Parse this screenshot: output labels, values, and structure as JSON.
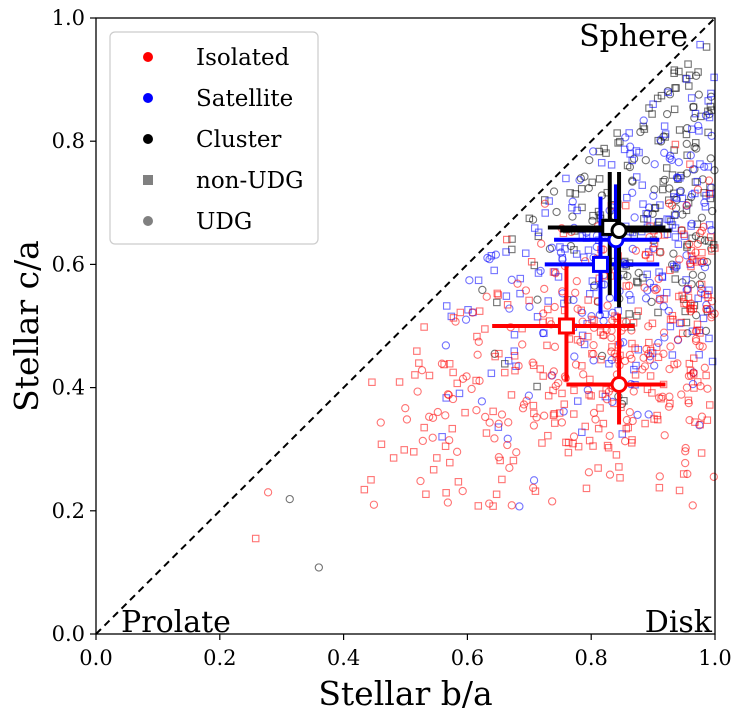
{
  "chart_data": {
    "type": "scatter",
    "title": "",
    "xlabel": "Stellar b/a",
    "ylabel": "Stellar c/a",
    "xlim": [
      0.0,
      1.0
    ],
    "ylim": [
      0.0,
      1.0
    ],
    "xticks": [
      "0.0",
      "0.2",
      "0.4",
      "0.6",
      "0.8",
      "1.0"
    ],
    "yticks": [
      "0.0",
      "0.2",
      "0.4",
      "0.6",
      "0.8",
      "1.0"
    ],
    "grid": false,
    "legend_position": "top-left",
    "legend": [
      {
        "label": "Isolated",
        "marker": "circle-filled",
        "color": "#ff0000"
      },
      {
        "label": "Satellite",
        "marker": "circle-filled",
        "color": "#0000ff"
      },
      {
        "label": "Cluster",
        "marker": "circle-filled",
        "color": "#000000"
      },
      {
        "label": "non-UDG",
        "marker": "square-filled",
        "color": "#808080"
      },
      {
        "label": "UDG",
        "marker": "circle-filled",
        "color": "#808080"
      }
    ],
    "annotations": [
      {
        "text": "Sphere",
        "x": 0.96,
        "y": 0.955
      },
      {
        "text": "Prolate",
        "x": 0.13,
        "y": 0.015
      },
      {
        "text": "Disk",
        "x": 0.95,
        "y": 0.015
      }
    ],
    "reference_line": {
      "style": "dashed",
      "color": "#000000",
      "points": [
        [
          0.0,
          0.0
        ],
        [
          1.0,
          1.0
        ]
      ]
    },
    "colors": {
      "isolated": "#ff0000",
      "satellite": "#0000ff",
      "cluster": "#000000"
    },
    "median_markers": [
      {
        "group": "Isolated",
        "type": "non-UDG",
        "x": 0.76,
        "y": 0.5,
        "x_err": [
          0.64,
          0.87
        ],
        "y_err": [
          0.41,
          0.6
        ]
      },
      {
        "group": "Isolated",
        "type": "UDG",
        "x": 0.845,
        "y": 0.405,
        "x_err": [
          0.76,
          0.92
        ],
        "y_err": [
          0.34,
          0.52
        ]
      },
      {
        "group": "Satellite",
        "type": "non-UDG",
        "x": 0.815,
        "y": 0.6,
        "x_err": [
          0.725,
          0.91
        ],
        "y_err": [
          0.52,
          0.71
        ]
      },
      {
        "group": "Satellite",
        "type": "UDG",
        "x": 0.84,
        "y": 0.64,
        "x_err": [
          0.74,
          0.91
        ],
        "y_err": [
          0.54,
          0.73
        ]
      },
      {
        "group": "Cluster",
        "type": "non-UDG",
        "x": 0.83,
        "y": 0.66,
        "x_err": [
          0.73,
          0.92
        ],
        "y_err": [
          0.55,
          0.75
        ]
      },
      {
        "group": "Cluster",
        "type": "UDG",
        "x": 0.845,
        "y": 0.655,
        "x_err": [
          0.75,
          0.93
        ],
        "y_err": [
          0.53,
          0.75
        ]
      }
    ],
    "scatter_clouds": [
      {
        "group": "Isolated",
        "color": "#ff0000",
        "count": 420,
        "b_a_range": [
          0.4,
          1.0
        ],
        "c_a_center": 0.45,
        "c_a_spread": 0.12
      },
      {
        "group": "Satellite",
        "color": "#0000ff",
        "count": 260,
        "b_a_range": [
          0.5,
          1.0
        ],
        "c_a_center": 0.6,
        "c_a_spread": 0.14
      },
      {
        "group": "Cluster",
        "color": "#000000",
        "count": 200,
        "b_a_range": [
          0.6,
          1.0
        ],
        "c_a_center": 0.7,
        "c_a_spread": 0.13
      }
    ],
    "outliers": [
      {
        "group": "Isolated",
        "marker": "circle",
        "x": 0.278,
        "y": 0.23
      },
      {
        "group": "Isolated",
        "marker": "square",
        "x": 0.258,
        "y": 0.155
      },
      {
        "group": "Cluster",
        "marker": "circle",
        "x": 0.313,
        "y": 0.219
      },
      {
        "group": "Cluster",
        "marker": "circle",
        "x": 0.36,
        "y": 0.108
      }
    ]
  }
}
